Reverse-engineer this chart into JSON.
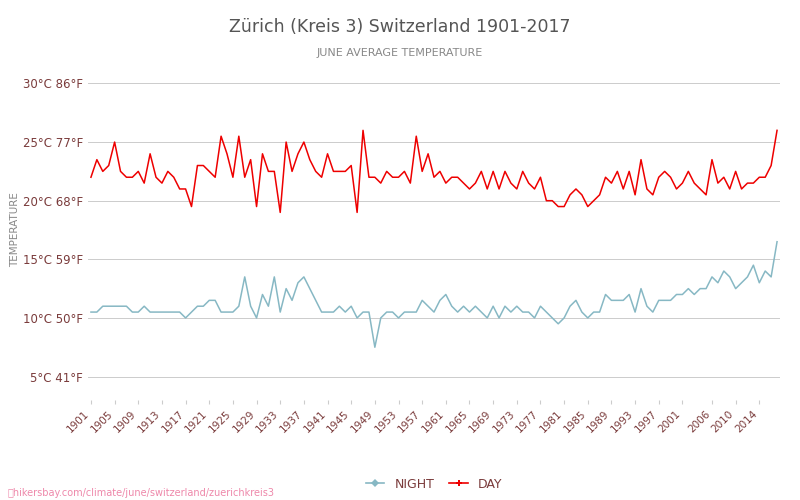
{
  "title": "Zürich (Kreis 3) Switzerland 1901-2017",
  "subtitle": "JUNE AVERAGE TEMPERATURE",
  "ylabel": "TEMPERATURE",
  "watermark": "hikersbay.com/climate/june/switzerland/zuerichkreis3",
  "years": [
    1901,
    1902,
    1903,
    1904,
    1905,
    1906,
    1907,
    1908,
    1909,
    1910,
    1911,
    1912,
    1913,
    1914,
    1915,
    1916,
    1917,
    1918,
    1919,
    1920,
    1921,
    1922,
    1923,
    1924,
    1925,
    1926,
    1927,
    1928,
    1929,
    1930,
    1931,
    1932,
    1933,
    1934,
    1935,
    1936,
    1937,
    1938,
    1939,
    1940,
    1941,
    1942,
    1943,
    1944,
    1945,
    1946,
    1947,
    1948,
    1949,
    1950,
    1951,
    1952,
    1953,
    1954,
    1955,
    1956,
    1957,
    1958,
    1959,
    1960,
    1961,
    1962,
    1963,
    1964,
    1965,
    1966,
    1967,
    1968,
    1969,
    1970,
    1971,
    1972,
    1973,
    1974,
    1975,
    1976,
    1977,
    1978,
    1979,
    1980,
    1981,
    1982,
    1983,
    1984,
    1985,
    1986,
    1987,
    1988,
    1989,
    1990,
    1991,
    1992,
    1993,
    1994,
    1995,
    1996,
    1997,
    1998,
    1999,
    2000,
    2001,
    2002,
    2003,
    2004,
    2005,
    2006,
    2007,
    2008,
    2009,
    2010,
    2011,
    2012,
    2013,
    2014,
    2015,
    2016,
    2017
  ],
  "day_temps": [
    22.0,
    23.5,
    22.5,
    23.0,
    25.0,
    22.5,
    22.0,
    22.0,
    22.5,
    21.5,
    24.0,
    22.0,
    21.5,
    22.5,
    22.0,
    21.0,
    21.0,
    19.5,
    23.0,
    23.0,
    22.5,
    22.0,
    25.5,
    24.0,
    22.0,
    25.5,
    22.0,
    23.5,
    19.5,
    24.0,
    22.5,
    22.5,
    19.0,
    25.0,
    22.5,
    24.0,
    25.0,
    23.5,
    22.5,
    22.0,
    24.0,
    22.5,
    22.5,
    22.5,
    23.0,
    19.0,
    26.0,
    22.0,
    22.0,
    21.5,
    22.5,
    22.0,
    22.0,
    22.5,
    21.5,
    25.5,
    22.5,
    24.0,
    22.0,
    22.5,
    21.5,
    22.0,
    22.0,
    21.5,
    21.0,
    21.5,
    22.5,
    21.0,
    22.5,
    21.0,
    22.5,
    21.5,
    21.0,
    22.5,
    21.5,
    21.0,
    22.0,
    20.0,
    20.0,
    19.5,
    19.5,
    20.5,
    21.0,
    20.5,
    19.5,
    20.0,
    20.5,
    22.0,
    21.5,
    22.5,
    21.0,
    22.5,
    20.5,
    23.5,
    21.0,
    20.5,
    22.0,
    22.5,
    22.0,
    21.0,
    21.5,
    22.5,
    21.5,
    21.0,
    20.5,
    23.5,
    21.5,
    22.0,
    21.0,
    22.5,
    21.0,
    21.5,
    21.5,
    22.0,
    22.0,
    23.0,
    26.0
  ],
  "night_temps": [
    10.5,
    10.5,
    11.0,
    11.0,
    11.0,
    11.0,
    11.0,
    10.5,
    10.5,
    11.0,
    10.5,
    10.5,
    10.5,
    10.5,
    10.5,
    10.5,
    10.0,
    10.5,
    11.0,
    11.0,
    11.5,
    11.5,
    10.5,
    10.5,
    10.5,
    11.0,
    13.5,
    11.0,
    10.0,
    12.0,
    11.0,
    13.5,
    10.5,
    12.5,
    11.5,
    13.0,
    13.5,
    12.5,
    11.5,
    10.5,
    10.5,
    10.5,
    11.0,
    10.5,
    11.0,
    10.0,
    10.5,
    10.5,
    7.5,
    10.0,
    10.5,
    10.5,
    10.0,
    10.5,
    10.5,
    10.5,
    11.5,
    11.0,
    10.5,
    11.5,
    12.0,
    11.0,
    10.5,
    11.0,
    10.5,
    11.0,
    10.5,
    10.0,
    11.0,
    10.0,
    11.0,
    10.5,
    11.0,
    10.5,
    10.5,
    10.0,
    11.0,
    10.5,
    10.0,
    9.5,
    10.0,
    11.0,
    11.5,
    10.5,
    10.0,
    10.5,
    10.5,
    12.0,
    11.5,
    11.5,
    11.5,
    12.0,
    10.5,
    12.5,
    11.0,
    10.5,
    11.5,
    11.5,
    11.5,
    12.0,
    12.0,
    12.5,
    12.0,
    12.5,
    12.5,
    13.5,
    13.0,
    14.0,
    13.5,
    12.5,
    13.0,
    13.5,
    14.5,
    13.0,
    14.0,
    13.5,
    16.5
  ],
  "day_color": "#ee0000",
  "night_color": "#87b8c4",
  "title_color": "#555555",
  "subtitle_color": "#888888",
  "ylabel_color": "#888888",
  "tick_color": "#7a3b3b",
  "grid_color": "#cccccc",
  "background_color": "#ffffff",
  "yticks_c": [
    5,
    10,
    15,
    20,
    25,
    30
  ],
  "yticks_f": [
    41,
    50,
    59,
    68,
    77,
    86
  ],
  "ylim": [
    3,
    32
  ],
  "xlim_left": 1900.5,
  "xlim_right": 2017.5,
  "xtick_years": [
    1901,
    1905,
    1909,
    1913,
    1917,
    1921,
    1925,
    1929,
    1933,
    1937,
    1941,
    1945,
    1949,
    1953,
    1957,
    1961,
    1965,
    1969,
    1973,
    1977,
    1981,
    1985,
    1989,
    1993,
    1997,
    2001,
    2006,
    2010,
    2014
  ]
}
